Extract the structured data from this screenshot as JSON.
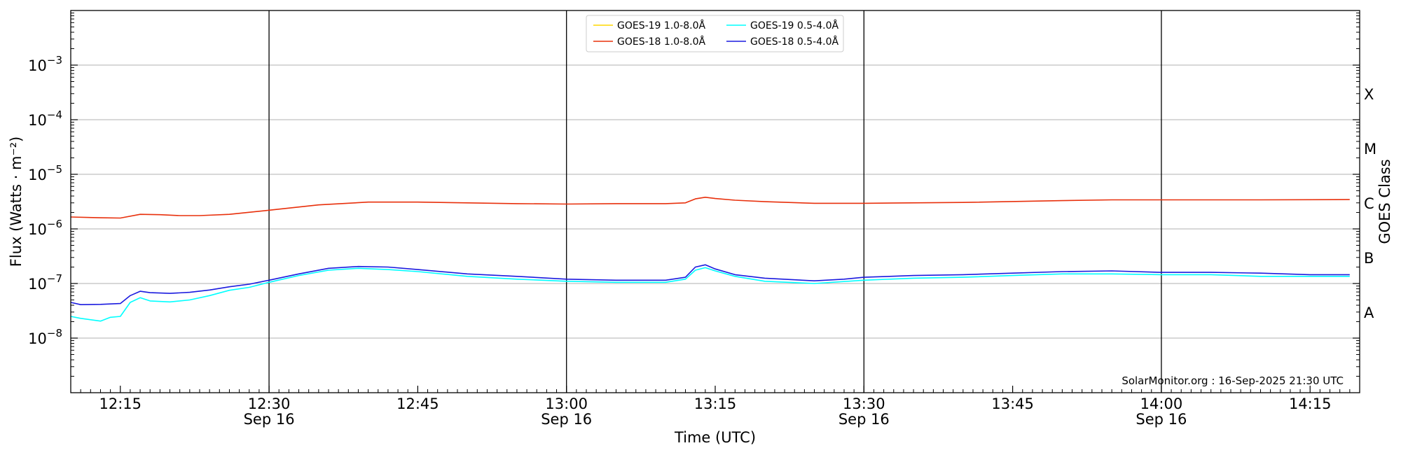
{
  "chart_data": {
    "type": "line",
    "xlabel": "Time (UTC)",
    "ylabel": "Flux (Watts · m⁻²)",
    "ylabel_right": "GOES Class",
    "credit": "SolarMonitor.org : 16-Sep-2025 21:30 UTC",
    "yscale": "log",
    "ylim": [
      1e-09,
      0.01
    ],
    "xlim": [
      "12:10",
      "14:20"
    ],
    "grid": "horizontal",
    "legend_position": "top-center",
    "y_ticks": [
      {
        "value": 1e-08,
        "base": "10",
        "exp": "−8"
      },
      {
        "value": 1e-07,
        "base": "10",
        "exp": "−7"
      },
      {
        "value": 1e-06,
        "base": "10",
        "exp": "−6"
      },
      {
        "value": 1e-05,
        "base": "10",
        "exp": "−5"
      },
      {
        "value": 0.0001,
        "base": "10",
        "exp": "−4"
      },
      {
        "value": 0.001,
        "base": "10",
        "exp": "−3"
      }
    ],
    "x_ticks": [
      {
        "time": "12:15",
        "date": ""
      },
      {
        "time": "12:30",
        "date": "Sep 16"
      },
      {
        "time": "12:45",
        "date": ""
      },
      {
        "time": "13:00",
        "date": "Sep 16"
      },
      {
        "time": "13:15",
        "date": ""
      },
      {
        "time": "13:30",
        "date": "Sep 16"
      },
      {
        "time": "13:45",
        "date": ""
      },
      {
        "time": "14:00",
        "date": "Sep 16"
      },
      {
        "time": "14:15",
        "date": ""
      }
    ],
    "vertical_lines": [
      "12:30",
      "13:00",
      "13:30",
      "14:00"
    ],
    "class_labels": [
      {
        "label": "A",
        "flux": 3e-08
      },
      {
        "label": "B",
        "flux": 3e-07
      },
      {
        "label": "C",
        "flux": 3e-06
      },
      {
        "label": "M",
        "flux": 3e-05
      },
      {
        "label": "X",
        "flux": 0.0003
      }
    ],
    "series": [
      {
        "name": "GOES-19 1.0-8.0Å",
        "color": "#ffd700",
        "points": []
      },
      {
        "name": "GOES-18 1.0-8.0Å",
        "color": "#e8300c",
        "points": [
          [
            "12:10",
            1.65e-06
          ],
          [
            "12:13",
            1.6e-06
          ],
          [
            "12:15",
            1.58e-06
          ],
          [
            "12:17",
            1.85e-06
          ],
          [
            "12:19",
            1.82e-06
          ],
          [
            "12:21",
            1.75e-06
          ],
          [
            "12:23",
            1.75e-06
          ],
          [
            "12:26",
            1.85e-06
          ],
          [
            "12:30",
            2.2e-06
          ],
          [
            "12:35",
            2.75e-06
          ],
          [
            "12:40",
            3.1e-06
          ],
          [
            "12:45",
            3.1e-06
          ],
          [
            "12:50",
            3e-06
          ],
          [
            "12:55",
            2.9e-06
          ],
          [
            "13:00",
            2.85e-06
          ],
          [
            "13:05",
            2.9e-06
          ],
          [
            "13:10",
            2.9e-06
          ],
          [
            "13:12",
            3e-06
          ],
          [
            "13:13",
            3.55e-06
          ],
          [
            "13:14",
            3.8e-06
          ],
          [
            "13:15",
            3.6e-06
          ],
          [
            "13:17",
            3.35e-06
          ],
          [
            "13:20",
            3.15e-06
          ],
          [
            "13:25",
            2.95e-06
          ],
          [
            "13:30",
            2.95e-06
          ],
          [
            "13:40",
            3.05e-06
          ],
          [
            "13:50",
            3.3e-06
          ],
          [
            "13:55",
            3.4e-06
          ],
          [
            "14:00",
            3.4e-06
          ],
          [
            "14:10",
            3.4e-06
          ],
          [
            "14:19",
            3.45e-06
          ]
        ]
      },
      {
        "name": "GOES-19 0.5-4.0Å",
        "color": "#00ffff",
        "points": [
          [
            "12:10",
            2.5e-08
          ],
          [
            "12:11",
            2.3e-08
          ],
          [
            "12:13",
            2.05e-08
          ],
          [
            "12:14",
            2.4e-08
          ],
          [
            "12:15",
            2.5e-08
          ],
          [
            "12:16",
            4.5e-08
          ],
          [
            "12:17",
            5.5e-08
          ],
          [
            "12:18",
            4.8e-08
          ],
          [
            "12:20",
            4.6e-08
          ],
          [
            "12:22",
            5e-08
          ],
          [
            "12:24",
            6e-08
          ],
          [
            "12:26",
            7.5e-08
          ],
          [
            "12:28",
            8.5e-08
          ],
          [
            "12:30",
            1.05e-07
          ],
          [
            "12:33",
            1.4e-07
          ],
          [
            "12:36",
            1.75e-07
          ],
          [
            "12:39",
            1.9e-07
          ],
          [
            "12:42",
            1.8e-07
          ],
          [
            "12:45",
            1.65e-07
          ],
          [
            "12:50",
            1.35e-07
          ],
          [
            "12:55",
            1.2e-07
          ],
          [
            "13:00",
            1.1e-07
          ],
          [
            "13:05",
            1.05e-07
          ],
          [
            "13:10",
            1.05e-07
          ],
          [
            "13:12",
            1.2e-07
          ],
          [
            "13:13",
            1.75e-07
          ],
          [
            "13:14",
            1.95e-07
          ],
          [
            "13:15",
            1.7e-07
          ],
          [
            "13:17",
            1.35e-07
          ],
          [
            "13:20",
            1.1e-07
          ],
          [
            "13:25",
            1e-07
          ],
          [
            "13:30",
            1.15e-07
          ],
          [
            "13:35",
            1.25e-07
          ],
          [
            "13:40",
            1.3e-07
          ],
          [
            "13:45",
            1.4e-07
          ],
          [
            "13:50",
            1.5e-07
          ],
          [
            "13:55",
            1.5e-07
          ],
          [
            "14:00",
            1.45e-07
          ],
          [
            "14:05",
            1.45e-07
          ],
          [
            "14:10",
            1.35e-07
          ],
          [
            "14:15",
            1.35e-07
          ],
          [
            "14:19",
            1.35e-07
          ]
        ]
      },
      {
        "name": "GOES-18 0.5-4.0Å",
        "color": "#1a1adf",
        "points": [
          [
            "12:10",
            4.5e-08
          ],
          [
            "12:11",
            4.1e-08
          ],
          [
            "12:13",
            4.15e-08
          ],
          [
            "12:15",
            4.3e-08
          ],
          [
            "12:16",
            6e-08
          ],
          [
            "12:17",
            7.2e-08
          ],
          [
            "12:18",
            6.8e-08
          ],
          [
            "12:20",
            6.6e-08
          ],
          [
            "12:22",
            6.9e-08
          ],
          [
            "12:24",
            7.6e-08
          ],
          [
            "12:26",
            8.7e-08
          ],
          [
            "12:28",
            9.7e-08
          ],
          [
            "12:30",
            1.15e-07
          ],
          [
            "12:33",
            1.5e-07
          ],
          [
            "12:36",
            1.9e-07
          ],
          [
            "12:39",
            2.05e-07
          ],
          [
            "12:42",
            2e-07
          ],
          [
            "12:45",
            1.8e-07
          ],
          [
            "12:50",
            1.5e-07
          ],
          [
            "12:55",
            1.35e-07
          ],
          [
            "13:00",
            1.2e-07
          ],
          [
            "13:05",
            1.15e-07
          ],
          [
            "13:10",
            1.15e-07
          ],
          [
            "13:12",
            1.3e-07
          ],
          [
            "13:13",
            2e-07
          ],
          [
            "13:14",
            2.2e-07
          ],
          [
            "13:15",
            1.85e-07
          ],
          [
            "13:17",
            1.45e-07
          ],
          [
            "13:20",
            1.25e-07
          ],
          [
            "13:25",
            1.12e-07
          ],
          [
            "13:28",
            1.2e-07
          ],
          [
            "13:30",
            1.3e-07
          ],
          [
            "13:35",
            1.4e-07
          ],
          [
            "13:40",
            1.45e-07
          ],
          [
            "13:45",
            1.55e-07
          ],
          [
            "13:50",
            1.65e-07
          ],
          [
            "13:55",
            1.7e-07
          ],
          [
            "14:00",
            1.6e-07
          ],
          [
            "14:05",
            1.6e-07
          ],
          [
            "14:10",
            1.55e-07
          ],
          [
            "14:15",
            1.45e-07
          ],
          [
            "14:19",
            1.45e-07
          ]
        ]
      }
    ]
  }
}
